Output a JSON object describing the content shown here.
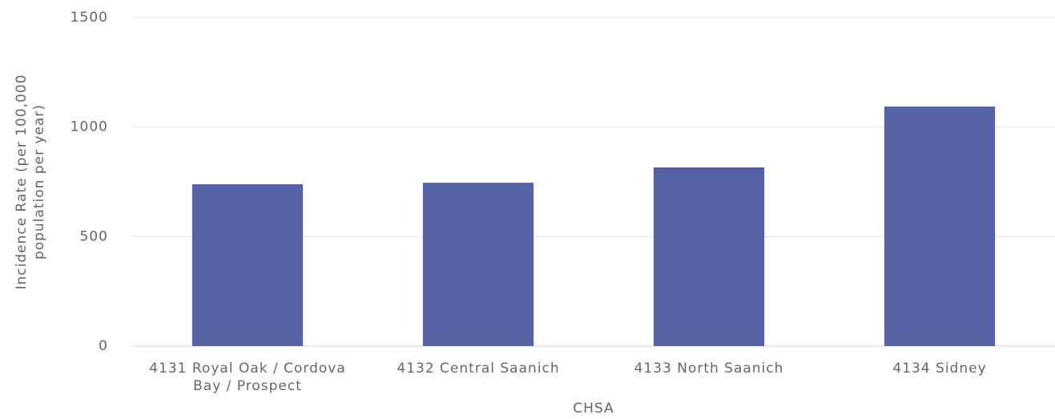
{
  "chart_data": {
    "type": "bar",
    "xlabel": "CHSA",
    "ylabel": "Incidence Rate (per 100,000 population per year)",
    "categories": [
      "4131 Royal Oak / Cordova Bay / Prospect",
      "4132 Central Saanich",
      "4133 North Saanich",
      "4134 Sidney"
    ],
    "values": [
      739,
      746,
      816,
      1094
    ],
    "color": "#5462a5",
    "ylim": [
      0,
      1500
    ],
    "yticks": [
      0,
      500,
      1000,
      1500
    ],
    "grid": true
  }
}
